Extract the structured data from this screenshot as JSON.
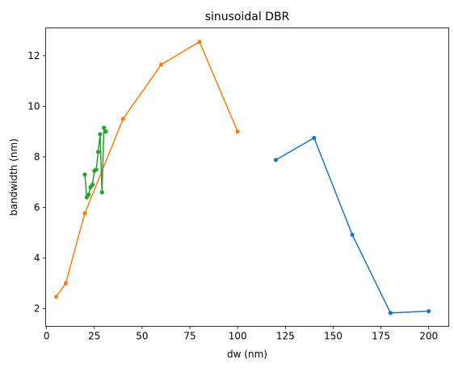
{
  "chart_data": {
    "type": "line",
    "title": "sinusoidal DBR",
    "xlabel": "dw (nm)",
    "ylabel": "bandwidth (nm)",
    "xlim": [
      -0.5,
      210.5
    ],
    "ylim": [
      1.3,
      13.1
    ],
    "xticks": [
      0,
      25,
      50,
      75,
      100,
      125,
      150,
      175,
      200
    ],
    "yticks": [
      2,
      4,
      6,
      8,
      10,
      12
    ],
    "grid": false,
    "legend": "none",
    "series": [
      {
        "color": "#1f77b4",
        "x": [
          120,
          140,
          160,
          180,
          200
        ],
        "y": [
          7.88,
          8.75,
          4.92,
          1.83,
          1.9
        ]
      },
      {
        "color": "#ff7f0e",
        "x": [
          5,
          10,
          20,
          40,
          60,
          80,
          100
        ],
        "y": [
          2.47,
          3.0,
          5.77,
          9.5,
          11.65,
          12.55,
          9.0
        ]
      },
      {
        "color": "#2ca02c",
        "x": [
          20,
          21,
          22,
          23,
          24,
          25,
          26,
          27,
          28,
          29,
          30,
          31
        ],
        "y": [
          7.3,
          6.4,
          6.5,
          6.8,
          6.9,
          7.45,
          7.5,
          8.2,
          8.9,
          6.6,
          9.15,
          9.0
        ]
      }
    ]
  }
}
